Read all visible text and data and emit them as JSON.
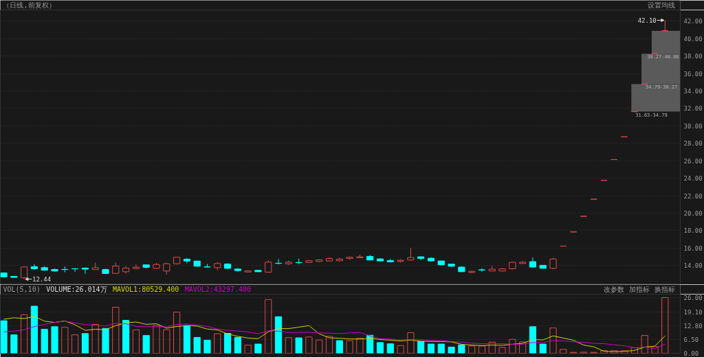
{
  "chart_data": [
    {
      "type": "candlestick",
      "subtitle": "（日线,前复权）",
      "annotations": [
        "设置均线",
        "42.10",
        "12.44"
      ],
      "categories": [
        null,
        null,
        null,
        null,
        null,
        null,
        null,
        null,
        null,
        null,
        null,
        null,
        null,
        null,
        null,
        null,
        null,
        null,
        null,
        null,
        null,
        null,
        null,
        null,
        null,
        null,
        null,
        null,
        null,
        null,
        null,
        null,
        null,
        null,
        null,
        null,
        null,
        null,
        null,
        null,
        null,
        null,
        null,
        null,
        null,
        null,
        null,
        null,
        null,
        null,
        null,
        null,
        null,
        null,
        null,
        null,
        null,
        null,
        null,
        null,
        null,
        null,
        null,
        null,
        null,
        null
      ],
      "ohlc": [
        [
          13.16,
          13.18,
          12.63,
          12.71
        ],
        [
          12.76,
          12.78,
          12.6,
          12.64
        ],
        [
          12.6,
          13.9,
          12.44,
          13.84
        ],
        [
          13.87,
          14.16,
          13.5,
          13.63
        ],
        [
          13.76,
          13.92,
          13.37,
          13.47
        ],
        [
          13.55,
          13.68,
          13.3,
          13.37
        ],
        [
          13.56,
          13.89,
          13.24,
          13.54
        ],
        [
          13.64,
          13.64,
          13.29,
          13.62
        ],
        [
          13.71,
          13.79,
          13.05,
          13.58
        ],
        [
          13.53,
          14.34,
          13.5,
          13.76
        ],
        [
          13.55,
          13.63,
          13.03,
          13.08
        ],
        [
          13.1,
          14.34,
          13.08,
          13.94
        ],
        [
          13.29,
          13.94,
          13.05,
          13.71
        ],
        [
          13.65,
          14.13,
          13.58,
          13.81
        ],
        [
          14.08,
          14.1,
          13.68,
          13.79
        ],
        [
          13.68,
          14.29,
          13.63,
          14.13
        ],
        [
          13.37,
          14.34,
          12.97,
          14.21
        ],
        [
          14.21,
          14.95,
          14.13,
          14.95
        ],
        [
          14.73,
          14.87,
          14.26,
          14.52
        ],
        [
          14.52,
          14.52,
          13.87,
          13.92
        ],
        [
          13.85,
          14.18,
          13.76,
          13.83
        ],
        [
          13.76,
          14.42,
          13.47,
          14.23
        ],
        [
          14.18,
          14.26,
          13.58,
          13.68
        ],
        [
          13.6,
          13.71,
          13.3,
          13.42
        ],
        [
          13.26,
          13.4,
          13.24,
          13.39
        ],
        [
          13.45,
          13.5,
          13.24,
          13.29
        ],
        [
          13.24,
          14.6,
          13.2,
          14.39
        ],
        [
          14.27,
          14.73,
          14.13,
          14.25
        ],
        [
          14.21,
          14.57,
          14.05,
          14.39
        ],
        [
          14.35,
          14.79,
          14.16,
          14.33
        ],
        [
          14.36,
          14.63,
          14.29,
          14.55
        ],
        [
          14.47,
          14.73,
          14.39,
          14.65
        ],
        [
          14.52,
          14.97,
          14.5,
          14.81
        ],
        [
          14.55,
          14.89,
          14.47,
          14.73
        ],
        [
          14.82,
          15.02,
          14.66,
          14.95
        ],
        [
          14.9,
          15.24,
          14.87,
          15.0
        ],
        [
          15.05,
          15.21,
          14.63,
          14.63
        ],
        [
          14.76,
          14.84,
          14.47,
          14.53
        ],
        [
          14.58,
          14.74,
          14.34,
          14.42
        ],
        [
          14.47,
          14.74,
          14.34,
          14.61
        ],
        [
          14.63,
          16.0,
          14.6,
          14.92
        ],
        [
          15.0,
          15.03,
          14.63,
          14.82
        ],
        [
          14.84,
          14.95,
          14.45,
          14.53
        ],
        [
          14.53,
          14.55,
          14.0,
          14.08
        ],
        [
          14.16,
          14.18,
          13.84,
          13.92
        ],
        [
          13.82,
          13.92,
          13.26,
          13.29
        ],
        [
          13.21,
          13.42,
          13.11,
          13.34
        ],
        [
          13.51,
          13.68,
          13.29,
          13.49
        ],
        [
          13.37,
          13.95,
          13.35,
          13.58
        ],
        [
          13.37,
          13.74,
          13.34,
          13.61
        ],
        [
          13.63,
          14.4,
          13.55,
          14.37
        ],
        [
          14.24,
          14.5,
          14.18,
          14.39
        ],
        [
          14.45,
          14.92,
          13.8,
          13.82
        ],
        [
          14.03,
          14.05,
          13.66,
          13.68
        ],
        [
          13.68,
          14.89,
          13.58,
          14.75
        ],
        [
          16.23,
          16.23,
          16.23,
          16.23
        ],
        [
          17.85,
          17.85,
          17.85,
          17.85
        ],
        [
          19.64,
          19.64,
          19.64,
          19.64
        ],
        [
          21.6,
          21.6,
          21.6,
          21.6
        ],
        [
          23.76,
          23.76,
          23.76,
          23.76
        ],
        [
          26.14,
          26.14,
          26.14,
          26.14
        ],
        [
          28.75,
          28.75,
          28.75,
          28.75
        ],
        [
          31.63,
          31.63,
          31.63,
          31.63
        ],
        [
          34.79,
          34.79,
          34.79,
          34.79
        ],
        [
          38.27,
          38.27,
          38.27,
          38.27
        ],
        [
          40.88,
          42.1,
          40.88,
          40.9
        ]
      ],
      "colors": [
        "#00ffff",
        "#00ffff",
        "#e04b4b",
        "#00ffff",
        "#00ffff",
        "#00ffff",
        "#00ffff",
        "#00ffff",
        "#00ffff",
        "#e04b4b",
        "#00ffff",
        "#e04b4b",
        "#e04b4b",
        "#e04b4b",
        "#00ffff",
        "#e04b4b",
        "#e04b4b",
        "#e04b4b",
        "#00ffff",
        "#00ffff",
        "#00ffff",
        "#e04b4b",
        "#00ffff",
        "#00ffff",
        "#e04b4b",
        "#00ffff",
        "#e04b4b",
        "#00ffff",
        "#e04b4b",
        "#00ffff",
        "#e04b4b",
        "#e04b4b",
        "#e04b4b",
        "#e04b4b",
        "#e04b4b",
        "#e04b4b",
        "#00ffff",
        "#00ffff",
        "#00ffff",
        "#e04b4b",
        "#e04b4b",
        "#00ffff",
        "#00ffff",
        "#00ffff",
        "#00ffff",
        "#00ffff",
        "#e04b4b",
        "#00ffff",
        "#e04b4b",
        "#e04b4b",
        "#e04b4b",
        "#e04b4b",
        "#00ffff",
        "#00ffff",
        "#e04b4b",
        "#e04b4b",
        "#e04b4b",
        "#e04b4b",
        "#e04b4b",
        "#e04b4b",
        "#e04b4b",
        "#e04b4b",
        "#e04b4b",
        "#e04b4b",
        "#e04b4b",
        "#e04b4b"
      ],
      "bands": [
        {
          "axis": "y",
          "from": 31.63,
          "to": 34.79,
          "label": "31.63-34.79",
          "color": "#5a5a5a"
        },
        {
          "axis": "y",
          "from": 34.79,
          "to": 38.27,
          "label": "34.79-38.27",
          "color": "#5a5a5a"
        },
        {
          "axis": "y",
          "from": 38.27,
          "to": 40.88,
          "label": "38.27-40.88",
          "color": "#5a5a5a"
        }
      ],
      "ylim": [
        11.82,
        43.28
      ],
      "yticks": [
        {
          "value": 14,
          "label": "14.00"
        },
        {
          "value": 16,
          "label": "16.00"
        },
        {
          "value": 18,
          "label": "18.00"
        },
        {
          "value": 20,
          "label": "20.00"
        },
        {
          "value": 22,
          "label": "22.00"
        },
        {
          "value": 24,
          "label": "24.00"
        },
        {
          "value": 26,
          "label": "26.00"
        },
        {
          "value": 28,
          "label": "28.00"
        },
        {
          "value": 30,
          "label": "30.00"
        },
        {
          "value": 32,
          "label": "32.00"
        },
        {
          "value": 34,
          "label": "34.00"
        },
        {
          "value": 36,
          "label": "36.00"
        },
        {
          "value": 38,
          "label": "38.00"
        },
        {
          "value": 40,
          "label": "40.00"
        },
        {
          "value": 42,
          "label": "42.00"
        }
      ],
      "grid": "y",
      "tick_labels": "y"
    },
    {
      "type": "bar",
      "title": "VOL(5,10)",
      "subtitle": "VOLUME:26.014万",
      "annotations": [
        "改参数",
        "加指标",
        "换指标"
      ],
      "categories": [
        null,
        null,
        null,
        null,
        null,
        null,
        null,
        null,
        null,
        null,
        null,
        null,
        null,
        null,
        null,
        null,
        null,
        null,
        null,
        null,
        null,
        null,
        null,
        null,
        null,
        null,
        null,
        null,
        null,
        null,
        null,
        null,
        null,
        null,
        null,
        null,
        null,
        null,
        null,
        null,
        null,
        null,
        null,
        null,
        null,
        null,
        null,
        null,
        null,
        null,
        null,
        null,
        null,
        null,
        null,
        null,
        null,
        null,
        null,
        null,
        null,
        null,
        null,
        null,
        null,
        null
      ],
      "series": [
        {
          "type": "bar",
          "values": [
            15.2,
            8.6,
            18.0,
            22.0,
            11.2,
            12.4,
            12.1,
            8.6,
            9.2,
            13.5,
            11.6,
            21.5,
            15.4,
            10.9,
            8.3,
            13.0,
            11.0,
            19.2,
            12.9,
            7.4,
            6.1,
            9.1,
            9.3,
            7.4,
            3.8,
            4.3,
            25.1,
            17.1,
            7.3,
            7.2,
            7.6,
            6.2,
            7.9,
            5.9,
            5.9,
            7.0,
            8.4,
            5.0,
            4.4,
            3.6,
            9.6,
            5.5,
            4.3,
            4.3,
            2.9,
            3.9,
            3.4,
            3.4,
            5.2,
            2.7,
            6.5,
            5.3,
            12.4,
            4.3,
            11.8,
            1.8,
            0.4,
            0.5,
            0.4,
            1.2,
            1.2,
            1.1,
            2.6,
            8.3,
            3.1,
            26.0
          ],
          "colors": [
            "#00ffff",
            "#00ffff",
            "#e04b4b",
            "#00ffff",
            "#00ffff",
            "#00ffff",
            "#e04b4b",
            "#e04b4b",
            "#00ffff",
            "#e04b4b",
            "#00ffff",
            "#e04b4b",
            "#00ffff",
            "#e04b4b",
            "#00ffff",
            "#e04b4b",
            "#e04b4b",
            "#e04b4b",
            "#00ffff",
            "#00ffff",
            "#00ffff",
            "#e04b4b",
            "#00ffff",
            "#00ffff",
            "#e04b4b",
            "#00ffff",
            "#e04b4b",
            "#00ffff",
            "#e04b4b",
            "#00ffff",
            "#e04b4b",
            "#e04b4b",
            "#e04b4b",
            "#00ffff",
            "#e04b4b",
            "#e04b4b",
            "#00ffff",
            "#00ffff",
            "#00ffff",
            "#e04b4b",
            "#e04b4b",
            "#00ffff",
            "#00ffff",
            "#00ffff",
            "#00ffff",
            "#00ffff",
            "#e04b4b",
            "#e04b4b",
            "#e04b4b",
            "#e04b4b",
            "#e04b4b",
            "#e04b4b",
            "#00ffff",
            "#00ffff",
            "#e04b4b",
            "#e04b4b",
            "#e04b4b",
            "#e04b4b",
            "#e04b4b",
            "#e04b4b",
            "#e04b4b",
            "#e04b4b",
            "#e04b4b",
            "#e04b4b",
            "#e04b4b",
            "#e04b4b"
          ]
        },
        {
          "type": "line",
          "name": "MAVOL1:80529.400",
          "color": "#d4d400",
          "values": [
            15.9,
            16.6,
            16.2,
            17.2,
            15.0,
            14.4,
            15.1,
            13.3,
            10.7,
            11.2,
            11.0,
            12.9,
            14.2,
            14.6,
            13.5,
            13.8,
            11.7,
            12.5,
            12.9,
            12.7,
            11.3,
            10.9,
            9.0,
            7.9,
            7.1,
            6.8,
            10.0,
            11.5,
            11.5,
            12.2,
            12.9,
            9.1,
            7.2,
            7.0,
            6.7,
            6.6,
            7.0,
            6.4,
            6.1,
            5.7,
            6.2,
            5.6,
            5.5,
            5.5,
            5.3,
            4.2,
            3.8,
            3.6,
            3.8,
            3.7,
            4.2,
            4.6,
            6.4,
            6.2,
            8.1,
            7.1,
            6.1,
            3.8,
            3.0,
            0.9,
            0.7,
            0.9,
            1.3,
            2.9,
            3.3,
            8.1
          ]
        },
        {
          "type": "line",
          "name": "MAVOL2:43297.400",
          "color": "#d000d0",
          "values": [
            10.0,
            10.3,
            11.0,
            12.4,
            13.5,
            14.4,
            15.0,
            14.2,
            13.4,
            13.1,
            12.7,
            14.0,
            13.8,
            12.6,
            12.4,
            12.4,
            12.3,
            13.4,
            13.7,
            13.1,
            12.6,
            11.3,
            10.7,
            10.4,
            9.9,
            9.1,
            10.5,
            10.3,
            9.7,
            9.7,
            9.8,
            9.5,
            9.4,
            9.2,
            9.5,
            9.7,
            8.1,
            6.8,
            6.6,
            6.2,
            6.4,
            6.3,
            6.0,
            5.8,
            5.5,
            5.2,
            4.7,
            4.5,
            4.6,
            4.5,
            4.2,
            4.2,
            5.0,
            5.0,
            5.9,
            5.7,
            5.4,
            5.1,
            4.6,
            4.5,
            3.9,
            3.5,
            2.5,
            2.9,
            2.1,
            4.3
          ]
        }
      ],
      "ylim": [
        0,
        27.6
      ],
      "yticks": [
        {
          "value": 0,
          "label": "0.00"
        },
        {
          "value": 6.5,
          "label": "6.50"
        },
        {
          "value": 12.8,
          "label": "12.80"
        },
        {
          "value": 19.1,
          "label": "19.10"
        },
        {
          "value": 26,
          "label": "26.00"
        }
      ],
      "grid": "y",
      "legend": "top left",
      "tick_labels": "y"
    }
  ]
}
